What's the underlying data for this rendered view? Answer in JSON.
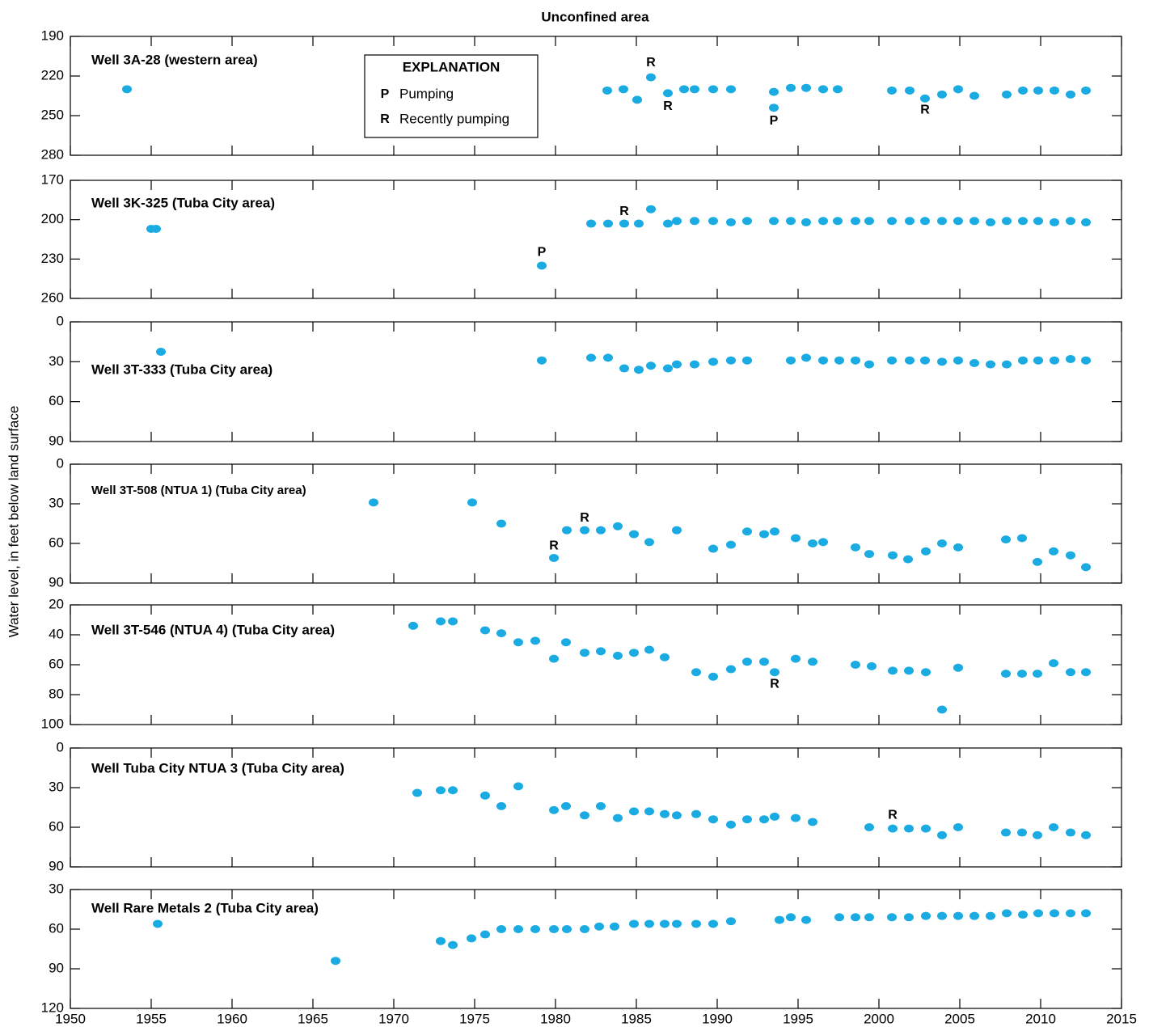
{
  "title": "Unconfined area",
  "ylabel": "Water level, in feet below land surface",
  "xlim": [
    1950,
    2015
  ],
  "xticks": [
    1950,
    1955,
    1960,
    1965,
    1970,
    1975,
    1980,
    1985,
    1990,
    1995,
    2000,
    2005,
    2010,
    2015
  ],
  "legend": {
    "title": "EXPLANATION",
    "items": [
      {
        "symbol": "P",
        "text": "Pumping"
      },
      {
        "symbol": "R",
        "text": "Recently pumping"
      }
    ]
  },
  "chart_data": [
    {
      "type": "scatter",
      "title": "Well 3A-28 (western area)",
      "color": "#1aabe2",
      "inverted": true,
      "ylim": [
        190,
        280
      ],
      "yticks": [
        190,
        220,
        250,
        280
      ],
      "x": [
        1953.5,
        1983.2,
        1984.2,
        1985.05,
        1985.9,
        1986.95,
        1987.95,
        1988.6,
        1989.75,
        1990.85,
        1993.5,
        1993.5,
        1994.55,
        1995.5,
        1996.55,
        1997.45,
        2000.8,
        2001.9,
        2002.85,
        2003.9,
        2004.9,
        2005.9,
        2007.9,
        2008.9,
        2009.85,
        2010.85,
        2011.85,
        2012.8
      ],
      "values": [
        230,
        231,
        230,
        238,
        221,
        233,
        230,
        230,
        230,
        230,
        232,
        244,
        229,
        229,
        230,
        230,
        231,
        231,
        237,
        234,
        230,
        235,
        234,
        231,
        231,
        231,
        234,
        231
      ],
      "annotations": [
        {
          "text": "R",
          "x": 1985.9,
          "y": 210
        },
        {
          "text": "R",
          "x": 1986.95,
          "y": 243
        },
        {
          "text": "P",
          "x": 1993.5,
          "y": 254
        },
        {
          "text": "R",
          "x": 2002.85,
          "y": 246
        }
      ]
    },
    {
      "type": "scatter",
      "title": "Well 3K-325 (Tuba City area)",
      "color": "#1aabe2",
      "inverted": true,
      "ylim": [
        170,
        260
      ],
      "yticks": [
        170,
        200,
        230,
        260
      ],
      "x": [
        1955.0,
        1955.3,
        1979.15,
        1982.2,
        1983.25,
        1984.25,
        1985.15,
        1985.9,
        1986.95,
        1987.5,
        1988.6,
        1989.75,
        1990.85,
        1991.85,
        1993.5,
        1994.55,
        1995.5,
        1996.55,
        1997.45,
        1998.55,
        1999.4,
        2000.8,
        2001.9,
        2002.85,
        2003.9,
        2004.9,
        2005.9,
        2006.9,
        2007.9,
        2008.9,
        2009.85,
        2010.85,
        2011.85,
        2012.8
      ],
      "values": [
        207,
        207,
        235,
        203,
        203,
        203,
        203,
        192,
        203,
        201,
        201,
        201,
        202,
        201,
        201,
        201,
        202,
        201,
        201,
        201,
        201,
        201,
        201,
        201,
        201,
        201,
        201,
        202,
        201,
        201,
        201,
        202,
        201,
        202
      ],
      "annotations": [
        {
          "text": "P",
          "x": 1979.15,
          "y": 225
        },
        {
          "text": "R",
          "x": 1984.25,
          "y": 194
        }
      ]
    },
    {
      "type": "scatter",
      "title": "Well 3T-333 (Tuba City area)",
      "color": "#1aabe2",
      "inverted": true,
      "ylim": [
        0,
        90
      ],
      "yticks": [
        0,
        30,
        60,
        90
      ],
      "x": [
        1955.6,
        1979.15,
        1982.2,
        1983.25,
        1984.25,
        1985.15,
        1985.9,
        1986.95,
        1987.5,
        1988.6,
        1989.75,
        1990.85,
        1991.85,
        1994.55,
        1995.5,
        1996.55,
        1997.55,
        1998.55,
        1999.4,
        2000.8,
        2001.9,
        2002.85,
        2003.9,
        2004.9,
        2005.9,
        2006.9,
        2007.9,
        2008.9,
        2009.85,
        2010.85,
        2011.85,
        2012.8
      ],
      "values": [
        22.5,
        29,
        27,
        27,
        35,
        36,
        33,
        35,
        32,
        32,
        30,
        29,
        29,
        29,
        27,
        29,
        29,
        29,
        32,
        29,
        29,
        29,
        30,
        29,
        31,
        32,
        32,
        29,
        29,
        29,
        28,
        29
      ],
      "annotations": []
    },
    {
      "type": "scatter",
      "title": "Well 3T-508 (NTUA 1) (Tuba City area)",
      "color": "#1aabe2",
      "inverted": true,
      "ylim": [
        0,
        90
      ],
      "yticks": [
        0,
        30,
        60,
        90
      ],
      "x": [
        1968.75,
        1974.85,
        1976.65,
        1979.9,
        1980.7,
        1981.8,
        1982.8,
        1983.85,
        1984.85,
        1985.8,
        1987.5,
        1989.75,
        1990.85,
        1991.85,
        1992.9,
        1993.55,
        1994.85,
        1995.9,
        1996.55,
        1998.55,
        1999.4,
        2000.85,
        2001.8,
        2002.9,
        2003.9,
        2004.9,
        2007.85,
        2008.85,
        2009.8,
        2010.8,
        2011.85,
        2012.8
      ],
      "values": [
        29,
        29,
        45,
        71,
        50,
        50,
        50,
        47,
        53,
        59,
        50,
        64,
        61,
        51,
        53,
        51,
        56,
        60,
        59,
        63,
        68,
        69,
        72,
        66,
        60,
        63,
        57,
        56,
        74,
        66,
        69,
        78
      ],
      "annotations": [
        {
          "text": "R",
          "x": 1979.9,
          "y": 62
        },
        {
          "text": "R",
          "x": 1981.8,
          "y": 41
        }
      ]
    },
    {
      "type": "scatter",
      "title": "Well 3T-546 (NTUA 4) (Tuba City area)",
      "color": "#1aabe2",
      "inverted": true,
      "ylim": [
        20,
        100
      ],
      "yticks": [
        20,
        40,
        60,
        80,
        100
      ],
      "x": [
        1971.2,
        1972.9,
        1973.65,
        1975.65,
        1976.65,
        1977.7,
        1978.75,
        1979.9,
        1980.65,
        1981.8,
        1982.8,
        1983.85,
        1984.85,
        1985.8,
        1986.75,
        1988.7,
        1989.75,
        1990.85,
        1991.85,
        1992.9,
        1993.55,
        1994.85,
        1995.9,
        1998.55,
        1999.55,
        2000.85,
        2001.85,
        2002.9,
        2003.9,
        2004.9,
        2007.85,
        2008.85,
        2009.8,
        2010.8,
        2011.85,
        2012.8
      ],
      "values": [
        34,
        31,
        31,
        37,
        39,
        45,
        44,
        56,
        45,
        52,
        51,
        54,
        52,
        50,
        55,
        65,
        68,
        63,
        58,
        58,
        65,
        56,
        58,
        60,
        61,
        64,
        64,
        65,
        90,
        62,
        66,
        66,
        66,
        59,
        65,
        65
      ],
      "annotations": [
        {
          "text": "R",
          "x": 1993.55,
          "y": 73
        }
      ]
    },
    {
      "type": "scatter",
      "title": "Well Tuba City NTUA 3 (Tuba City area)",
      "color": "#1aabe2",
      "inverted": true,
      "ylim": [
        0,
        90
      ],
      "yticks": [
        0,
        30,
        60,
        90
      ],
      "x": [
        1971.45,
        1972.9,
        1973.65,
        1975.65,
        1976.65,
        1977.7,
        1979.9,
        1980.65,
        1981.8,
        1982.8,
        1983.85,
        1984.85,
        1985.8,
        1986.75,
        1987.5,
        1988.7,
        1989.75,
        1990.85,
        1991.85,
        1992.9,
        1993.55,
        1994.85,
        1995.9,
        1999.4,
        2000.85,
        2001.85,
        2002.9,
        2003.9,
        2004.9,
        2007.85,
        2008.85,
        2009.8,
        2010.8,
        2011.85,
        2012.8
      ],
      "values": [
        34,
        32,
        32,
        36,
        44,
        29,
        47,
        44,
        51,
        44,
        53,
        48,
        48,
        50,
        51,
        50,
        54,
        58,
        54,
        54,
        52,
        53,
        56,
        60,
        61,
        61,
        61,
        66,
        60,
        64,
        64,
        66,
        60,
        64,
        66
      ],
      "annotations": [
        {
          "text": "R",
          "x": 2000.85,
          "y": 51
        }
      ]
    },
    {
      "type": "scatter",
      "title": "Well Rare Metals 2 (Tuba City area)",
      "color": "#1aabe2",
      "inverted": true,
      "ylim": [
        30,
        120
      ],
      "yticks": [
        30,
        60,
        90,
        120
      ],
      "x": [
        1955.4,
        1966.4,
        1972.9,
        1973.65,
        1974.8,
        1975.65,
        1976.65,
        1977.7,
        1978.75,
        1979.9,
        1980.7,
        1981.8,
        1982.7,
        1983.65,
        1984.85,
        1985.8,
        1986.75,
        1987.5,
        1988.7,
        1989.75,
        1990.85,
        1993.85,
        1994.55,
        1995.5,
        1997.55,
        1998.55,
        1999.4,
        2000.8,
        2001.85,
        2002.9,
        2003.9,
        2004.9,
        2005.9,
        2006.9,
        2007.9,
        2008.9,
        2009.85,
        2010.85,
        2011.85,
        2012.8
      ],
      "values": [
        56,
        84,
        69,
        72,
        67,
        64,
        60,
        60,
        60,
        60,
        60,
        60,
        58,
        58,
        56,
        56,
        56,
        56,
        56,
        56,
        54,
        53,
        51,
        53,
        51,
        51,
        51,
        51,
        51,
        50,
        50,
        50,
        50,
        50,
        48,
        49,
        48,
        48,
        48,
        48
      ],
      "annotations": []
    }
  ]
}
